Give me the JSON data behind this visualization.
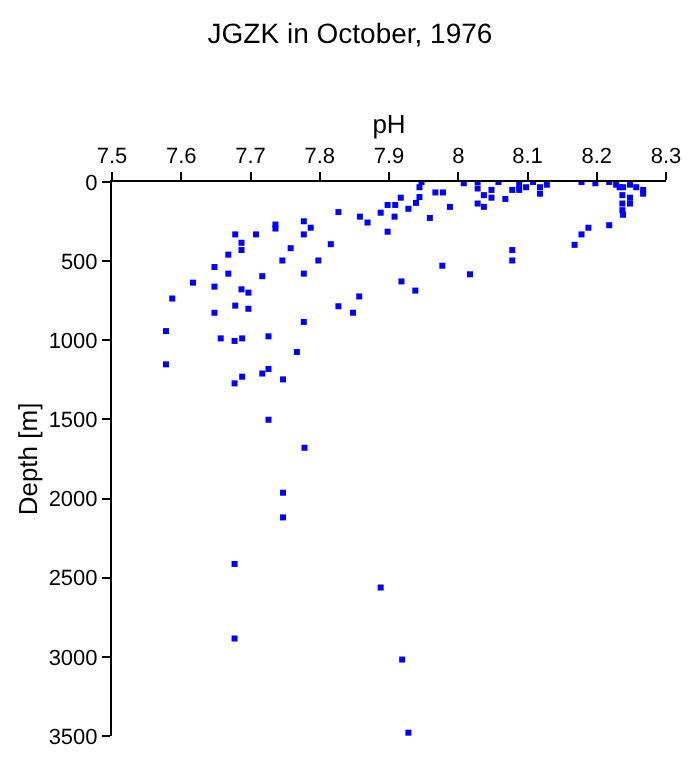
{
  "chart_data": {
    "type": "scatter",
    "title": "JGZK in October, 1976",
    "xlabel": "pH",
    "ylabel": "Depth [m]",
    "series": [
      {
        "color": "#0000ff",
        "x": [
          7.947,
          7.944,
          7.944,
          7.917,
          7.939,
          7.928,
          7.909,
          7.898,
          7.888,
          7.908,
          7.869,
          7.858,
          7.827,
          7.898,
          7.959,
          7.967,
          7.978,
          7.988,
          8.008,
          8.028,
          8.028,
          8.028,
          8.037,
          8.037,
          8.048,
          8.048,
          8.058,
          8.068,
          8.078,
          8.088,
          8.088,
          8.098,
          8.108,
          8.118,
          8.118,
          8.128,
          8.178,
          8.198,
          8.218,
          8.228,
          8.233,
          8.238,
          8.248,
          8.257,
          8.267,
          8.267,
          8.237,
          8.237,
          8.237,
          8.248,
          8.248,
          8.238,
          8.218,
          8.188,
          8.178,
          8.168,
          8.078,
          8.078,
          8.017,
          7.977,
          7.938,
          7.918,
          7.857,
          7.848,
          7.827,
          7.777,
          7.787,
          7.777,
          7.816,
          7.798,
          7.777,
          7.777,
          7.758,
          7.746,
          7.736,
          7.736,
          7.708,
          7.678,
          7.687,
          7.687,
          7.668,
          7.648,
          7.668,
          7.648,
          7.617,
          7.717,
          7.687,
          7.697,
          7.678,
          7.697,
          7.648,
          7.587,
          7.578,
          7.726,
          7.578,
          7.657,
          7.677,
          7.688,
          7.767,
          7.726,
          7.717,
          7.688,
          7.677,
          7.747,
          7.726,
          7.778,
          7.747,
          7.747,
          7.677,
          7.888,
          7.677,
          7.919,
          7.928
        ],
        "values": [
          0,
          33,
          95,
          99,
          132,
          169,
          145,
          145,
          194,
          219,
          256,
          219,
          190,
          314,
          227,
          66,
          66,
          157,
          8,
          0,
          41,
          136,
          83,
          157,
          50,
          99,
          0,
          107,
          50,
          17,
          50,
          33,
          0,
          33,
          74,
          17,
          0,
          8,
          0,
          17,
          33,
          33,
          17,
          33,
          50,
          74,
          83,
          136,
          178,
          99,
          136,
          207,
          273,
          289,
          331,
          397,
          430,
          496,
          583,
          529,
          686,
          628,
          723,
          826,
          785,
          248,
          289,
          331,
          393,
          496,
          579,
          884,
          418,
          496,
          269,
          294,
          331,
          331,
          384,
          430,
          459,
          537,
          579,
          661,
          636,
          595,
          678,
          699,
          781,
          801,
          826,
          736,
          942,
          975,
          1152,
          988,
          1004,
          988,
          1074,
          1181,
          1210,
          1230,
          1272,
          1247,
          1502,
          1679,
          1963,
          2119,
          2413,
          2562,
          2884,
          3017,
          3479
        ]
      }
    ],
    "xlim": [
      7.5,
      8.3
    ],
    "xticks": [
      7.5,
      7.6,
      7.7,
      7.8,
      7.9,
      8,
      8.1,
      8.2,
      8.3
    ],
    "ylim": [
      3500,
      0
    ],
    "yticks": [
      0,
      500,
      1000,
      1500,
      2000,
      2500,
      3000,
      3500
    ],
    "marker": "square"
  }
}
